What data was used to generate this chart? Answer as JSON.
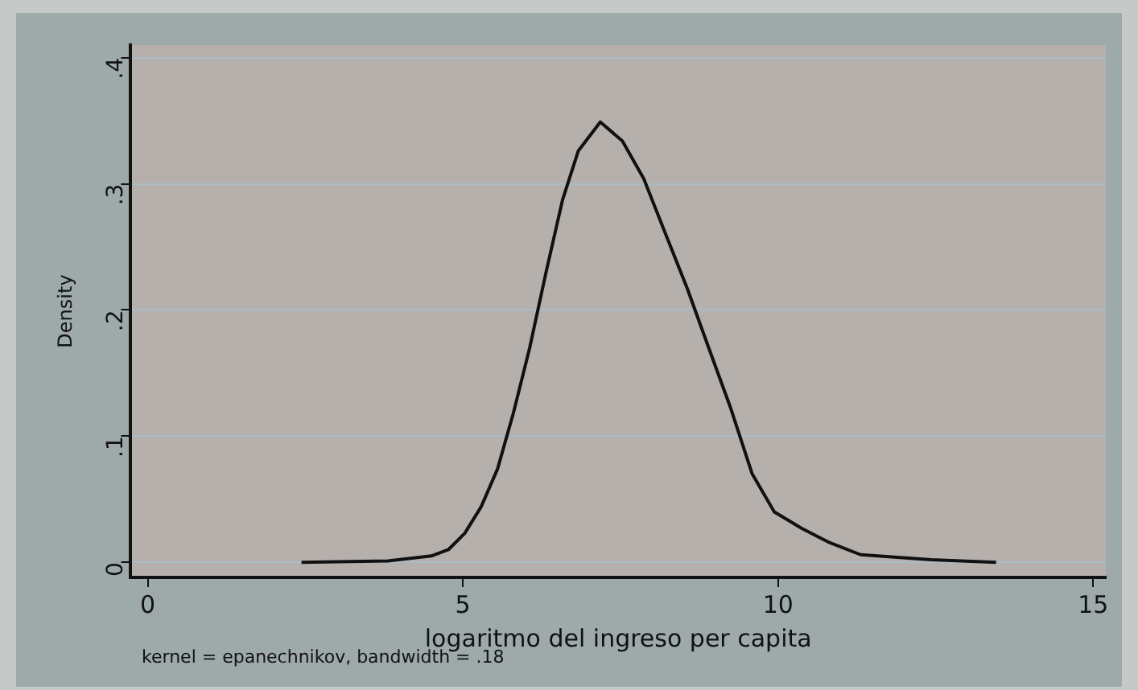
{
  "chart_data": {
    "type": "line",
    "ylabel": "Density",
    "xlabel": "logaritmo del ingreso per capita",
    "annotations": [
      "kernel = epanechnikov, bandwidth = .18"
    ],
    "series": [
      {
        "color": "#111111",
        "x": [
          2.44,
          3.81,
          4.5,
          4.77,
          5.03,
          5.29,
          5.55,
          5.8,
          6.06,
          6.32,
          6.58,
          6.83,
          7.18,
          7.53,
          7.87,
          8.21,
          8.56,
          8.9,
          9.25,
          9.59,
          9.94,
          10.37,
          10.8,
          11.31,
          12.43,
          13.46
        ],
        "values": [
          0,
          0.001,
          0.005,
          0.01,
          0.023,
          0.044,
          0.074,
          0.118,
          0.17,
          0.23,
          0.287,
          0.326,
          0.349,
          0.334,
          0.304,
          0.261,
          0.217,
          0.17,
          0.122,
          0.07,
          0.04,
          0.027,
          0.016,
          0.006,
          0.002,
          0
        ]
      }
    ],
    "xlim": [
      -0.27,
      15.2
    ],
    "ylim": [
      -0.012,
      0.41
    ],
    "xticks": [
      0,
      5,
      10,
      15
    ],
    "yticks": [
      0,
      {
        "value": 0.1,
        "label": ".1"
      },
      {
        "value": 0.2,
        "label": ".2"
      },
      {
        "value": 0.3,
        "label": ".3"
      },
      {
        "value": 0.4,
        "label": ".4"
      }
    ],
    "grid": "y",
    "legend": false,
    "marker": "none",
    "line_style": "solid"
  }
}
